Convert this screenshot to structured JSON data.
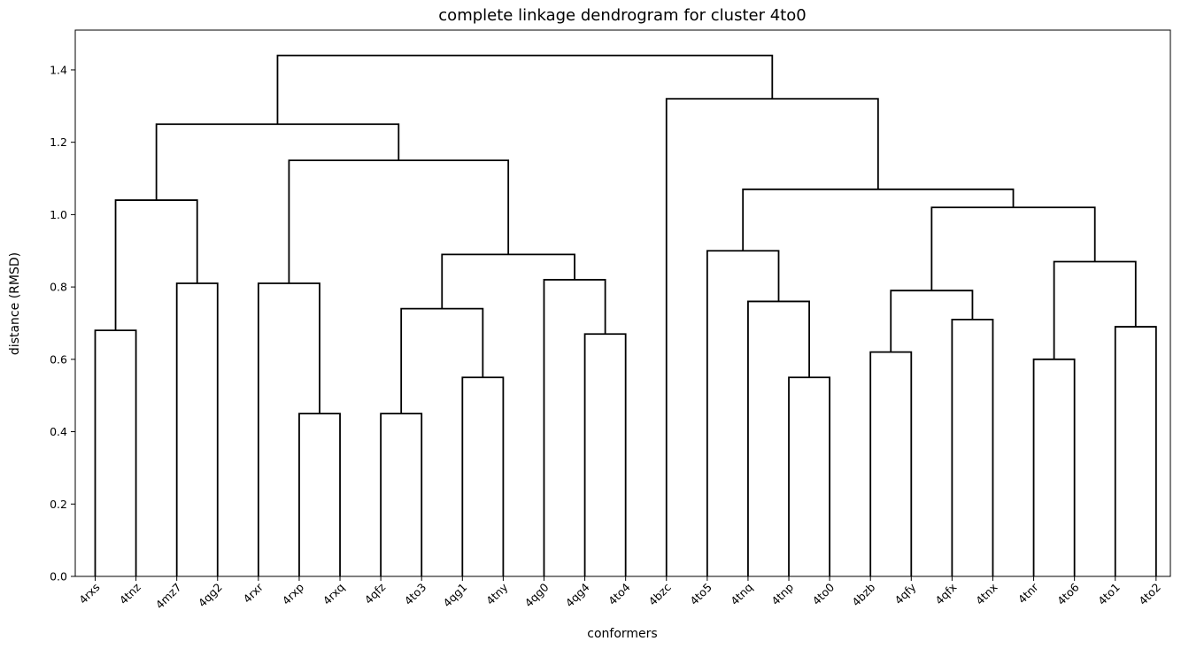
{
  "chart_data": {
    "type": "dendrogram",
    "title": "complete linkage dendrogram for cluster 4to0",
    "xlabel": "conformers",
    "ylabel": "distance (RMSD)",
    "ylim": [
      0,
      1.51
    ],
    "yticks": [
      "0.0",
      "0.2",
      "0.4",
      "0.6",
      "0.8",
      "1.0",
      "1.2",
      "1.4"
    ],
    "grid": false,
    "leaves": [
      "4rxs",
      "4tnz",
      "4mz7",
      "4qg2",
      "4rxr",
      "4rxp",
      "4rxq",
      "4qfz",
      "4to3",
      "4qg1",
      "4tny",
      "4qg0",
      "4qg4",
      "4to4",
      "4bzc",
      "4to5",
      "4tnq",
      "4tnp",
      "4to0",
      "4bzb",
      "4qfy",
      "4qfx",
      "4tnx",
      "4tnr",
      "4to6",
      "4to1",
      "4to2"
    ],
    "merges": [
      {
        "left": "4rxp",
        "right": "4rxq",
        "height": 0.45
      },
      {
        "left": "4qfz",
        "right": "4to3",
        "height": 0.45
      },
      {
        "left": "4qg1",
        "right": "4tny",
        "height": 0.55
      },
      {
        "left": "4tnp",
        "right": "4to0",
        "height": 0.55
      },
      {
        "left": "4tnr",
        "right": "4to6",
        "height": 0.6
      },
      {
        "left": "4bzb",
        "right": "4qfy",
        "height": 0.62
      },
      {
        "left": "4qg4",
        "right": "4to4",
        "height": 0.67
      },
      {
        "left": "4rxs",
        "right": "4tnz",
        "height": 0.68
      },
      {
        "left": "4to1",
        "right": "4to2",
        "height": 0.69
      },
      {
        "left": "4qfx",
        "right": "4tnx",
        "height": 0.71
      },
      {
        "left": "4qfz+4to3",
        "right": "4qg1+4tny",
        "height": 0.74
      },
      {
        "left": "4tnq",
        "right": "4tnp+4to0",
        "height": 0.76
      },
      {
        "left": "4bzb+4qfy",
        "right": "4qfx+4tnx",
        "height": 0.79
      },
      {
        "left": "4mz7",
        "right": "4qg2",
        "height": 0.81
      },
      {
        "left": "4rxr",
        "right": "4rxp+4rxq",
        "height": 0.81
      },
      {
        "left": "4qg0",
        "right": "4qg4+4to4",
        "height": 0.82
      },
      {
        "left": "4tnr+4to6",
        "right": "4to1+4to2",
        "height": 0.87
      },
      {
        "left": "4qfz..4tny",
        "right": "4qg0..4to4",
        "height": 0.89
      },
      {
        "left": "4to5",
        "right": "4tnq..4to0",
        "height": 0.9
      },
      {
        "left": "4bzb..4tnx",
        "right": "4tnr..4to2",
        "height": 1.02
      },
      {
        "left": "4rxs+4tnz",
        "right": "4mz7+4qg2",
        "height": 1.04
      },
      {
        "left": "4to5..4to0",
        "right": "4bzb..4to2",
        "height": 1.07
      },
      {
        "left": "4rxr..4rxq",
        "right": "4qfz..4to4",
        "height": 1.15
      },
      {
        "left": "4rxs..4qg2",
        "right": "4rxr..4to4",
        "height": 1.25
      },
      {
        "left": "4bzc",
        "right": "4to5..4to2",
        "height": 1.32
      },
      {
        "left": "4rxs..4to4",
        "right": "4bzc..4to2",
        "height": 1.44
      }
    ]
  }
}
